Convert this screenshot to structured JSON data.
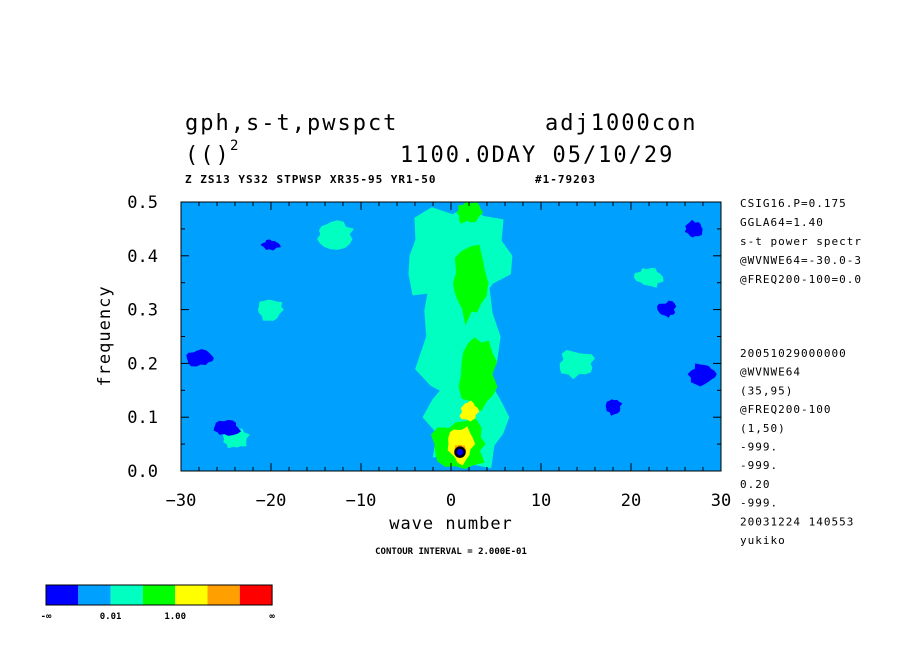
{
  "title": {
    "line1_left": "gph,s-t,pwspct",
    "line1_right": "adj1000con",
    "line2_left": "(()",
    "line2_sup": "2",
    "line2_right": "1100.0DAY 05/10/29",
    "subtitle_left": "Z ZS13 YS32 STPWSP XR35-95 YR1-50",
    "subtitle_right": "#1-79203"
  },
  "side_info_top": [
    "CSIG16.P=0.175",
    "GGLA64=1.40",
    "s-t power spectr",
    "@WVNWE64=-30.0-3",
    "@FREQ200-100=0.0"
  ],
  "side_info_bottom": [
    "20051029000000",
    "@WVNWE64",
    "(35,95)",
    "@FREQ200-100",
    "(1,50)",
    "-999.",
    "-999.",
    "0.20",
    "-999.",
    "20031224 140553",
    "yukiko"
  ],
  "contour_interval": "CONTOUR INTERVAL = 2.000E-01",
  "colorbar": {
    "colors": [
      "#0000ff",
      "#00a0ff",
      "#00ffc0",
      "#00ff00",
      "#ffff00",
      "#ffa000",
      "#ff0000"
    ],
    "labels": [
      "-∞",
      "0.01",
      "1.00",
      "∞"
    ]
  },
  "chart_data": {
    "type": "heatmap",
    "xlabel": "wave number",
    "ylabel": "frequency",
    "xlim": [
      -30,
      30
    ],
    "ylim": [
      0.0,
      0.5
    ],
    "xticks": [
      -30,
      -20,
      -10,
      0,
      10,
      20,
      30
    ],
    "yticks": [
      0.0,
      0.1,
      0.2,
      0.3,
      0.4,
      0.5
    ],
    "xtick_labels": [
      "−30",
      "−20",
      "−10",
      "0",
      "10",
      "20",
      "30"
    ],
    "ytick_labels": [
      "0.0",
      "0.1",
      "0.2",
      "0.3",
      "0.4",
      "0.5"
    ],
    "background_level": 1,
    "blobs": [
      {
        "x": 1,
        "y": 0.4,
        "w": 12,
        "h": 0.2,
        "level": 2
      },
      {
        "x": 1,
        "y": 0.25,
        "w": 9,
        "h": 0.3,
        "level": 2
      },
      {
        "x": 2,
        "y": 0.1,
        "w": 9,
        "h": 0.2,
        "level": 2
      },
      {
        "x": -20,
        "y": 0.3,
        "w": 3,
        "h": 0.04,
        "level": 2
      },
      {
        "x": -13,
        "y": 0.44,
        "w": 4,
        "h": 0.05,
        "level": 2
      },
      {
        "x": 14,
        "y": 0.2,
        "w": 4,
        "h": 0.05,
        "level": 2
      },
      {
        "x": 22,
        "y": 0.36,
        "w": 3,
        "h": 0.04,
        "level": 2
      },
      {
        "x": -24,
        "y": 0.06,
        "w": 3,
        "h": 0.04,
        "level": 2
      },
      {
        "x": 2,
        "y": 0.35,
        "w": 4,
        "h": 0.14,
        "level": 3
      },
      {
        "x": 3,
        "y": 0.18,
        "w": 4,
        "h": 0.12,
        "level": 3
      },
      {
        "x": 1,
        "y": 0.05,
        "w": 6,
        "h": 0.09,
        "level": 3
      },
      {
        "x": 2,
        "y": 0.48,
        "w": 3,
        "h": 0.04,
        "level": 3
      },
      {
        "x": 1,
        "y": 0.05,
        "w": 3,
        "h": 0.07,
        "level": 4
      },
      {
        "x": 2,
        "y": 0.11,
        "w": 2,
        "h": 0.04,
        "level": 4
      },
      {
        "x": 1,
        "y": 0.04,
        "w": 1.2,
        "h": 0.02,
        "level": 5
      },
      {
        "x": -28,
        "y": 0.21,
        "w": 3,
        "h": 0.03,
        "level": 0
      },
      {
        "x": 28,
        "y": 0.18,
        "w": 3,
        "h": 0.04,
        "level": 0
      },
      {
        "x": -25,
        "y": 0.08,
        "w": 3,
        "h": 0.03,
        "level": 0
      },
      {
        "x": 24,
        "y": 0.3,
        "w": 2,
        "h": 0.03,
        "level": 0
      },
      {
        "x": -20,
        "y": 0.42,
        "w": 2,
        "h": 0.02,
        "level": 0
      },
      {
        "x": 18,
        "y": 0.12,
        "w": 2,
        "h": 0.03,
        "level": 0
      },
      {
        "x": 27,
        "y": 0.45,
        "w": 2,
        "h": 0.03,
        "level": 0
      }
    ],
    "peak_marker": {
      "x": 1,
      "y": 0.035
    }
  }
}
